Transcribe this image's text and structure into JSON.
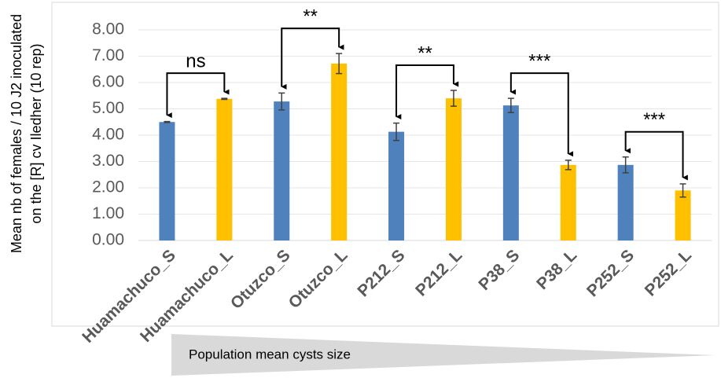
{
  "chart_data": {
    "type": "bar",
    "y_label": [
      "Mean nb of females / 10 J2 inoculated",
      "on the [R] cv Iledher (10 rep)"
    ],
    "categories": [
      "Huamachuco_S",
      "Huamachuco_L",
      "Otuzco_S",
      "Otuzco_L",
      "P212_S",
      "P212_L",
      "P38_S",
      "P38_L",
      "P252_S",
      "P252_L"
    ],
    "values": [
      4.5,
      5.38,
      5.28,
      6.72,
      4.13,
      5.4,
      5.13,
      2.87,
      2.87,
      1.9
    ],
    "errors": [
      0.02,
      0.02,
      0.32,
      0.38,
      0.33,
      0.3,
      0.27,
      0.18,
      0.3,
      0.25
    ],
    "colors": [
      "#4f81bd",
      "#ffc000",
      "#4f81bd",
      "#ffc000",
      "#4f81bd",
      "#ffc000",
      "#4f81bd",
      "#ffc000",
      "#4f81bd",
      "#ffc000"
    ],
    "significance": [
      "ns",
      "**",
      "**",
      "***",
      "***"
    ],
    "gradient_label": "Population mean cysts size",
    "ylim": [
      0,
      8
    ],
    "yticks": [
      {
        "value": 0,
        "label": "0.00"
      },
      {
        "value": 1,
        "label": "1.00"
      },
      {
        "value": 2,
        "label": "2.00"
      },
      {
        "value": 3,
        "label": "3.00"
      },
      {
        "value": 4,
        "label": "4.00"
      },
      {
        "value": 5,
        "label": "5.00"
      },
      {
        "value": 6,
        "label": "6.00"
      },
      {
        "value": 7,
        "label": "7.00"
      },
      {
        "value": 8,
        "label": "8.00"
      }
    ],
    "grid": true
  }
}
